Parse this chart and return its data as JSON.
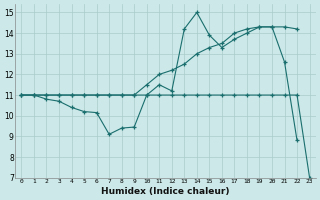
{
  "xlabel": "Humidex (Indice chaleur)",
  "bg_color": "#cce8e8",
  "line_color": "#1a6e6e",
  "grid_color": "#aacccc",
  "xlim": [
    -0.5,
    23.5
  ],
  "ylim": [
    7,
    15.4
  ],
  "xticks": [
    0,
    1,
    2,
    3,
    4,
    5,
    6,
    7,
    8,
    9,
    10,
    11,
    12,
    13,
    14,
    15,
    16,
    17,
    18,
    19,
    20,
    21,
    22,
    23
  ],
  "yticks": [
    7,
    8,
    9,
    10,
    11,
    12,
    13,
    14,
    15
  ],
  "series": [
    {
      "x": [
        0,
        1,
        2,
        3,
        4,
        5,
        6,
        7,
        8,
        9,
        10,
        11,
        12,
        13,
        14,
        15,
        16,
        17,
        18,
        19,
        20,
        21,
        22,
        23
      ],
      "y": [
        11,
        11,
        11,
        11,
        11,
        11,
        11,
        11,
        11,
        11,
        11,
        11,
        11,
        11,
        11,
        11,
        11,
        11,
        11,
        11,
        11,
        11,
        11,
        7
      ]
    },
    {
      "x": [
        0,
        1,
        2,
        3,
        4,
        5,
        6,
        7,
        8,
        9,
        10,
        11,
        12,
        13,
        14,
        15,
        16,
        17,
        18,
        19,
        20,
        21,
        22
      ],
      "y": [
        11,
        11,
        10.8,
        10.7,
        10.4,
        10.2,
        10.15,
        9.1,
        9.4,
        9.45,
        11,
        11.5,
        11.2,
        14.2,
        15,
        13.9,
        13.3,
        13.7,
        14.0,
        14.3,
        14.3,
        12.6,
        8.8
      ]
    },
    {
      "x": [
        0,
        1,
        2,
        3,
        4,
        5,
        6,
        7,
        8,
        9,
        10,
        11,
        12,
        13,
        14,
        15,
        16,
        17,
        18,
        19,
        20,
        21,
        22
      ],
      "y": [
        11,
        11,
        11,
        11,
        11,
        11,
        11,
        11,
        11,
        11,
        11.5,
        12,
        12.2,
        12.5,
        13,
        13.3,
        13.5,
        14,
        14.2,
        14.3,
        14.3,
        14.3,
        14.2
      ]
    }
  ]
}
